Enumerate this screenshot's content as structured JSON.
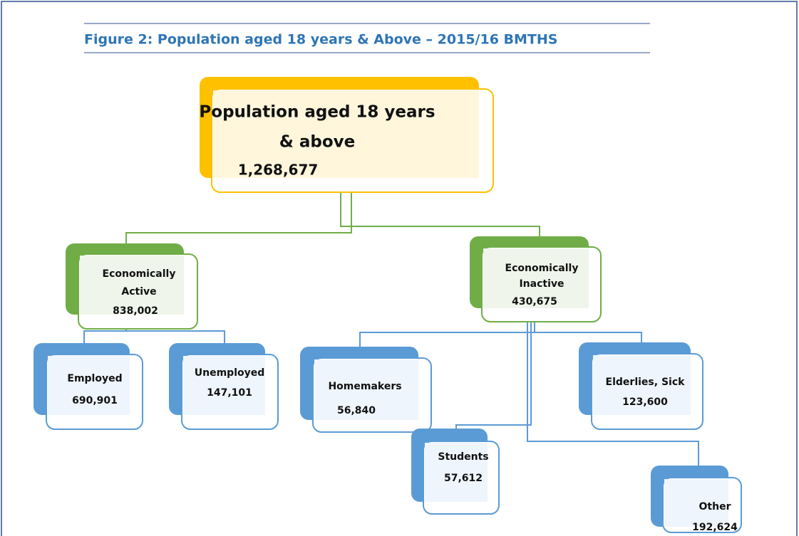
{
  "title": "Figure 2: Population aged 18 years & Above – 2015/16 BMTHS",
  "nodes": [
    {
      "lines": [
        "Population aged 18 years",
        "& above"
      ],
      "value": "1,268,677"
    },
    {
      "lines": [
        "Economically",
        "Active"
      ],
      "value": "838,002"
    },
    {
      "lines": [
        "Economically",
        "Inactive"
      ],
      "value": "430,675"
    },
    {
      "lines": [
        "Employed"
      ],
      "value": "690,901"
    },
    {
      "lines": [
        "Unemployed"
      ],
      "value": "147,101"
    },
    {
      "lines": [
        "Homemakers"
      ],
      "value": "56,840"
    },
    {
      "lines": [
        "Elderlies, Sick"
      ],
      "value": "123,600"
    },
    {
      "lines": [
        "Students"
      ],
      "value": "57,612"
    },
    {
      "lines": [
        "Other"
      ],
      "value": "192,624"
    }
  ]
}
